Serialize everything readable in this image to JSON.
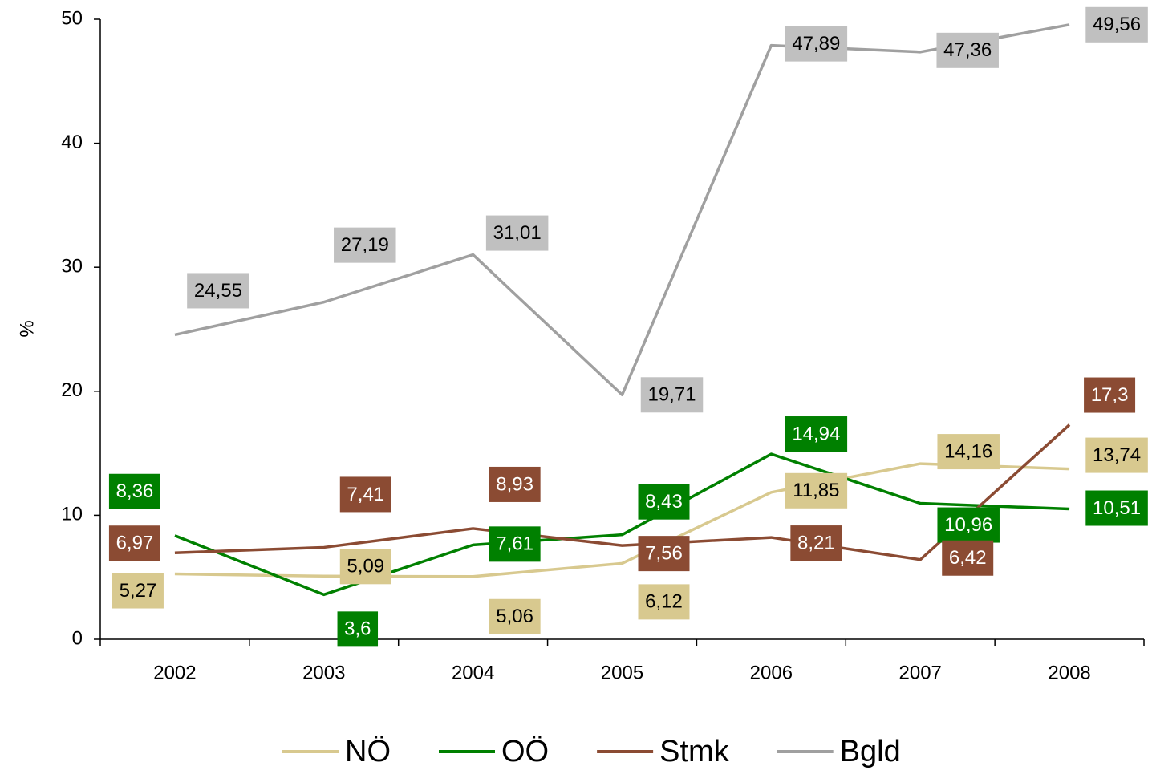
{
  "chart_data": {
    "type": "line",
    "y_label": "%",
    "categories": [
      "2002",
      "2003",
      "2004",
      "2005",
      "2006",
      "2007",
      "2008"
    ],
    "ylim": [
      0,
      50
    ],
    "yticks": [
      0,
      10,
      20,
      30,
      40,
      50
    ],
    "legend": "bottom",
    "series": [
      {
        "name": "NÖ",
        "color": "#d8c98f",
        "values": [
          5.27,
          5.09,
          5.06,
          6.12,
          11.85,
          14.16,
          13.74
        ],
        "value_labels": [
          "5,27",
          "5,09",
          "5,06",
          "6,12",
          "11,85",
          "14,16",
          "13,74"
        ]
      },
      {
        "name": "OÖ",
        "color": "#008000",
        "values": [
          8.36,
          3.6,
          7.61,
          8.43,
          14.94,
          10.96,
          10.51
        ],
        "value_labels": [
          "8,36",
          "3,6",
          "7,61",
          "8,43",
          "14,94",
          "10,96",
          "10,51"
        ]
      },
      {
        "name": "Stmk",
        "color": "#8b4b33",
        "values": [
          6.97,
          7.41,
          8.93,
          7.56,
          8.21,
          6.42,
          17.3
        ],
        "value_labels": [
          "6,97",
          "7,41",
          "8,93",
          "7,56",
          "8,21",
          "6,42",
          "17,3"
        ]
      },
      {
        "name": "Bgld",
        "color": "#a0a0a0",
        "values": [
          24.55,
          27.19,
          31.01,
          19.71,
          47.89,
          47.36,
          49.56
        ],
        "value_labels": [
          "24,55",
          "27,19",
          "31,01",
          "19,71",
          "47,89",
          "47,36",
          "49,56"
        ]
      }
    ]
  }
}
